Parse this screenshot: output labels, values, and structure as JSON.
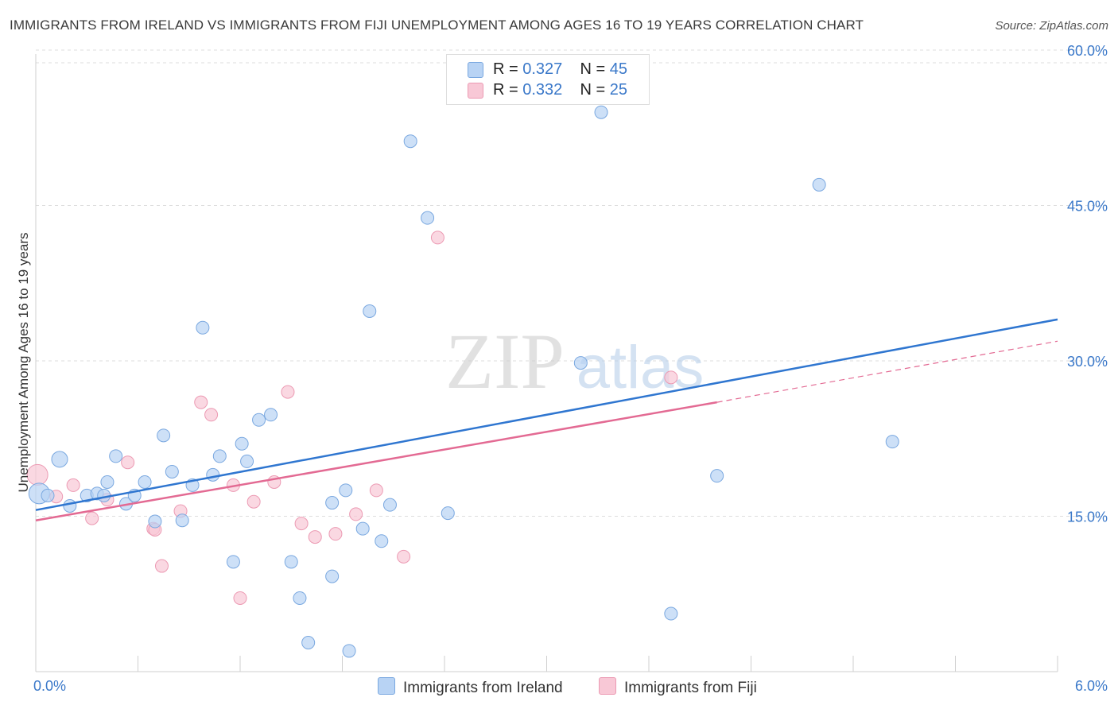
{
  "title": "IMMIGRANTS FROM IRELAND VS IMMIGRANTS FROM FIJI UNEMPLOYMENT AMONG AGES 16 TO 19 YEARS CORRELATION CHART",
  "source": "Source: ZipAtlas.com",
  "watermark": {
    "zip": "ZIP",
    "atlas": "atlas"
  },
  "legend": {
    "r_label": "R = ",
    "n_label": "N = ",
    "ireland": {
      "r": "0.327",
      "n": "45"
    },
    "fiji": {
      "r": "0.332",
      "n": "25"
    }
  },
  "bottom_legend": {
    "ireland": "Immigrants from Ireland",
    "fiji": "Immigrants from Fiji"
  },
  "colors": {
    "ireland_fill": "#b8d3f4",
    "ireland_stroke": "#7aa8e0",
    "ireland_line": "#2f76d0",
    "fiji_fill": "#f8c8d6",
    "fiji_stroke": "#ec9ab3",
    "fiji_line": "#e36a93",
    "axis_text": "#3a78c9",
    "grid": "#dddddd"
  },
  "chart_data": {
    "type": "scatter",
    "title": "IMMIGRANTS FROM IRELAND VS IMMIGRANTS FROM FIJI UNEMPLOYMENT AMONG AGES 16 TO 19 YEARS CORRELATION CHART",
    "xlabel": "",
    "ylabel": "Unemployment Among Ages 16 to 19 years",
    "xlim": [
      0,
      6
    ],
    "ylim": [
      0,
      60
    ],
    "x_tick_labels": [
      "0.0%",
      "6.0%"
    ],
    "y_ticks": [
      15,
      30,
      45,
      60
    ],
    "y_tick_labels": [
      "15.0%",
      "30.0%",
      "45.0%",
      "60.0%"
    ],
    "grid": "horizontal dashed",
    "legend_position": "top-center",
    "series": [
      {
        "name": "Immigrants from Ireland",
        "r": 0.327,
        "n": 45,
        "trend": {
          "x": [
            0,
            6
          ],
          "y": [
            15.6,
            34.0
          ]
        },
        "points": [
          [
            0.02,
            17.2
          ],
          [
            0.07,
            17.0
          ],
          [
            0.14,
            20.5
          ],
          [
            0.2,
            16.0
          ],
          [
            0.3,
            17.0
          ],
          [
            0.36,
            17.2
          ],
          [
            0.42,
            18.3
          ],
          [
            0.47,
            20.8
          ],
          [
            0.53,
            16.2
          ],
          [
            0.58,
            17.0
          ],
          [
            0.64,
            18.3
          ],
          [
            0.7,
            14.5
          ],
          [
            0.75,
            22.8
          ],
          [
            0.8,
            19.3
          ],
          [
            0.86,
            14.6
          ],
          [
            0.92,
            18.0
          ],
          [
            0.98,
            33.2
          ],
          [
            1.04,
            19.0
          ],
          [
            1.08,
            20.8
          ],
          [
            1.16,
            10.6
          ],
          [
            1.21,
            22.0
          ],
          [
            1.24,
            20.3
          ],
          [
            1.31,
            24.3
          ],
          [
            1.38,
            24.8
          ],
          [
            1.5,
            10.6
          ],
          [
            1.55,
            7.1
          ],
          [
            1.6,
            2.8
          ],
          [
            1.74,
            9.2
          ],
          [
            1.74,
            16.3
          ],
          [
            1.82,
            17.5
          ],
          [
            1.84,
            2.0
          ],
          [
            1.92,
            13.8
          ],
          [
            1.96,
            34.8
          ],
          [
            2.03,
            12.6
          ],
          [
            2.08,
            16.1
          ],
          [
            2.2,
            51.2
          ],
          [
            2.3,
            43.8
          ],
          [
            2.42,
            15.3
          ],
          [
            3.2,
            29.8
          ],
          [
            3.32,
            54.0
          ],
          [
            3.73,
            5.6
          ],
          [
            4.0,
            18.9
          ],
          [
            4.6,
            47.0
          ],
          [
            5.03,
            22.2
          ],
          [
            0.4,
            17.0
          ]
        ]
      },
      {
        "name": "Immigrants from Fiji",
        "r": 0.332,
        "n": 25,
        "trend": {
          "x": [
            0,
            4.0
          ],
          "y": [
            14.6,
            26.0
          ],
          "extension": {
            "x": [
              4.0,
              6
            ],
            "y": [
              26.0,
              31.9
            ]
          }
        },
        "points": [
          [
            0.01,
            19.0
          ],
          [
            0.12,
            16.9
          ],
          [
            0.22,
            18.0
          ],
          [
            0.33,
            14.8
          ],
          [
            0.42,
            16.6
          ],
          [
            0.54,
            20.2
          ],
          [
            0.69,
            13.8
          ],
          [
            0.74,
            10.2
          ],
          [
            0.85,
            15.5
          ],
          [
            0.97,
            26.0
          ],
          [
            1.03,
            24.8
          ],
          [
            1.16,
            18.0
          ],
          [
            1.2,
            7.1
          ],
          [
            1.28,
            16.4
          ],
          [
            1.4,
            18.3
          ],
          [
            1.48,
            27.0
          ],
          [
            1.56,
            14.3
          ],
          [
            1.64,
            13.0
          ],
          [
            1.76,
            13.3
          ],
          [
            1.88,
            15.2
          ],
          [
            2.0,
            17.5
          ],
          [
            2.16,
            11.1
          ],
          [
            2.36,
            41.9
          ],
          [
            3.73,
            28.4
          ],
          [
            0.7,
            13.7
          ]
        ]
      }
    ]
  }
}
